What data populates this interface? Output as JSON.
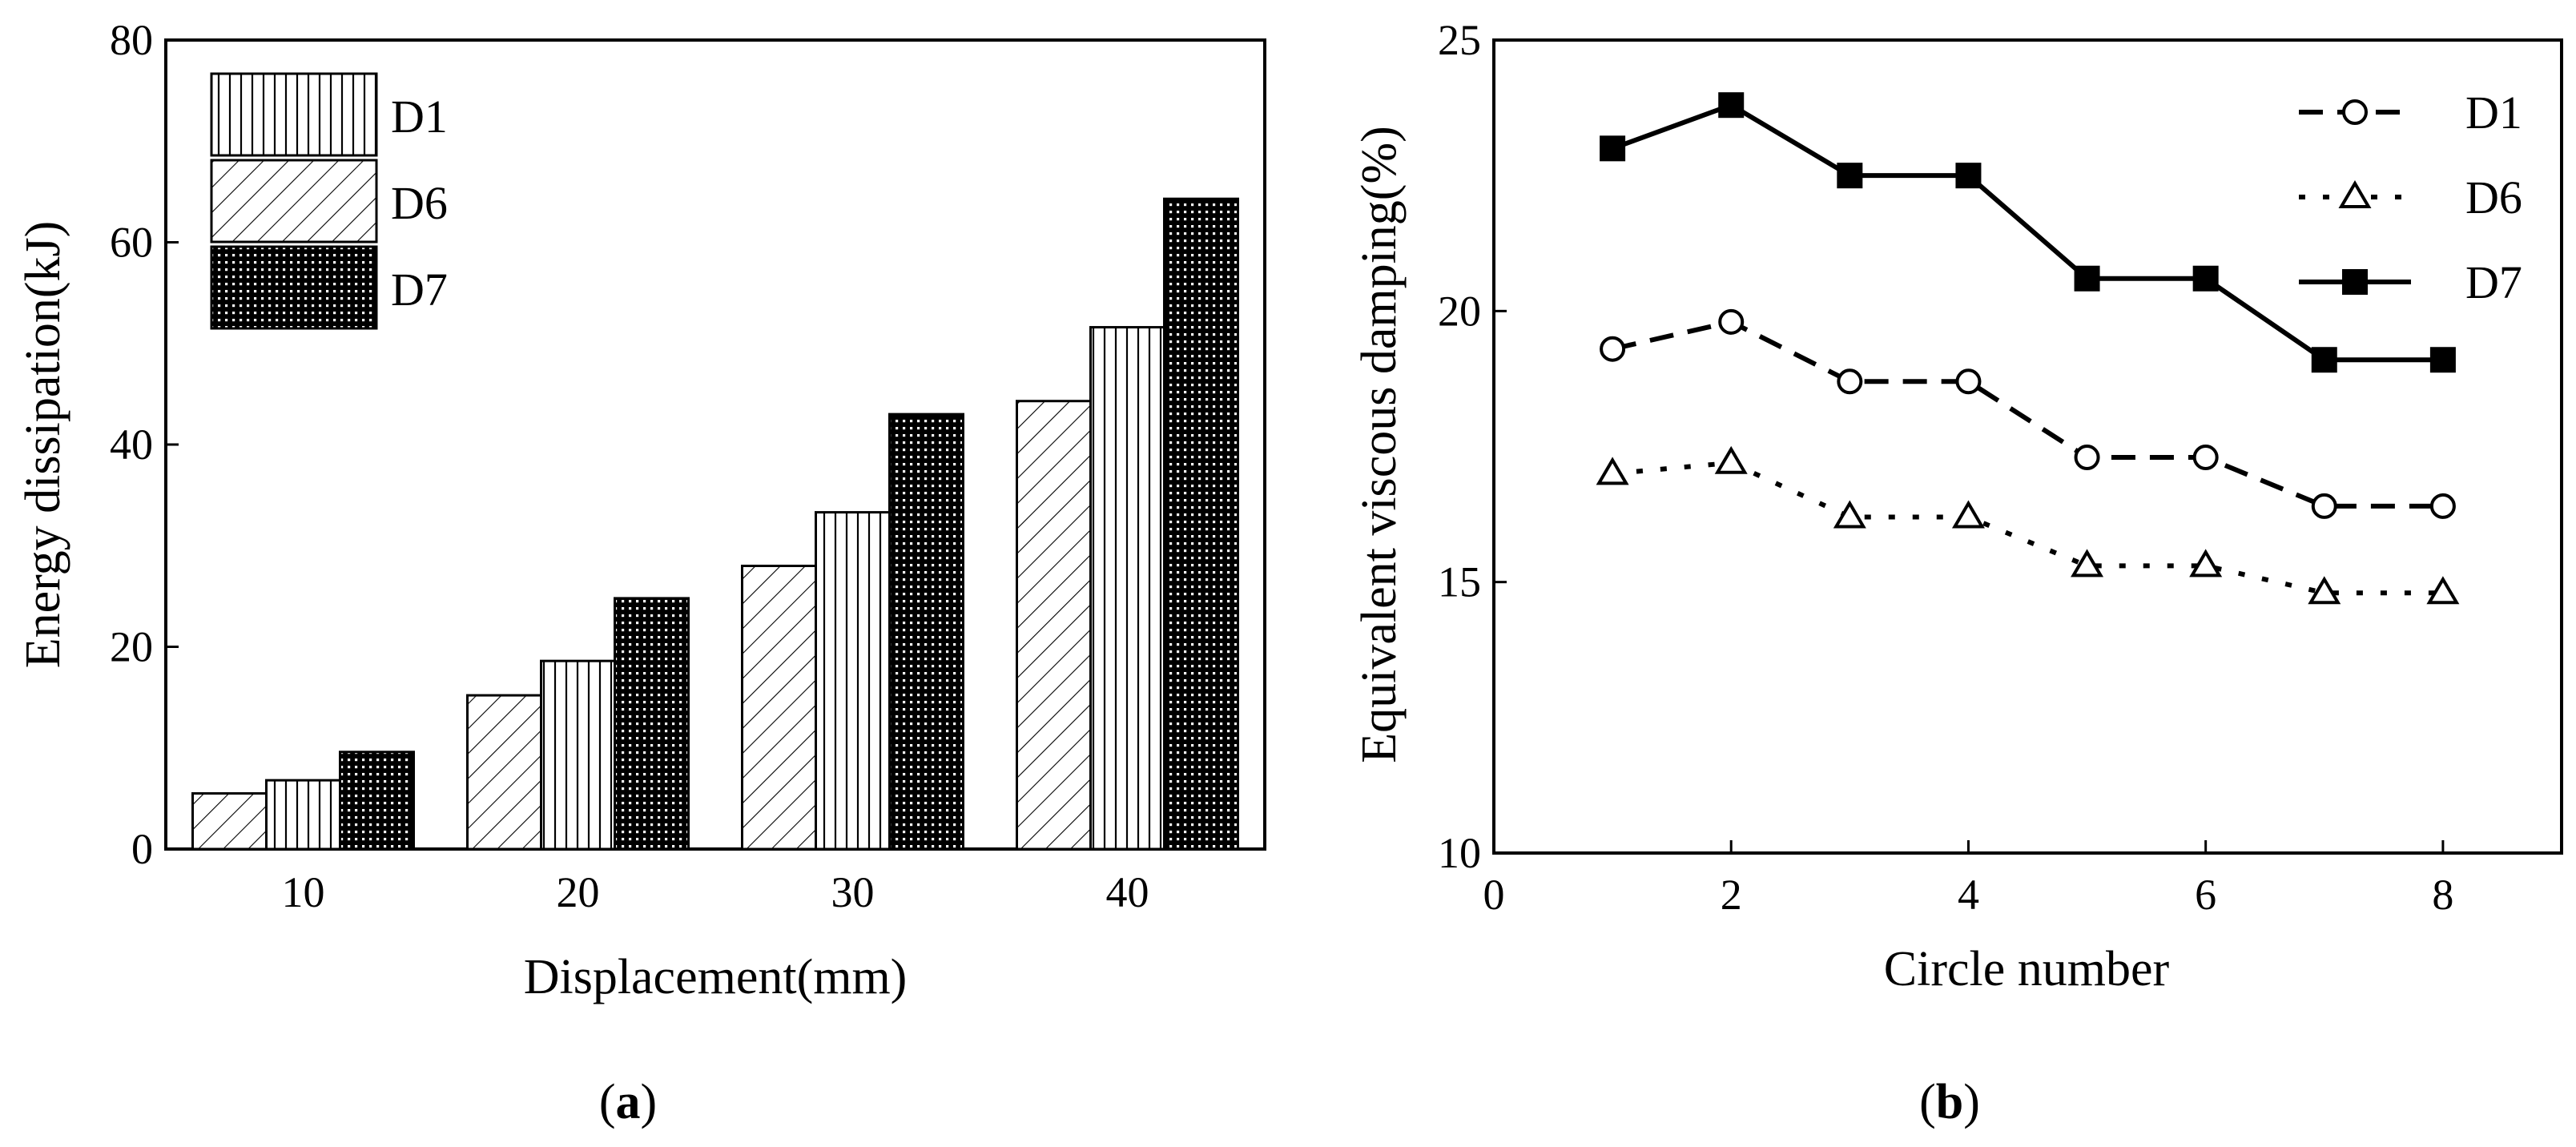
{
  "chart_data": [
    {
      "type": "bar",
      "panel_label": "a",
      "categories": [
        "10",
        "20",
        "30",
        "40"
      ],
      "series": [
        {
          "name": "D6",
          "pattern": "hatch-diagonal",
          "values": [
            5.5,
            15.2,
            28.0,
            44.3
          ]
        },
        {
          "name": "D1",
          "pattern": "hatch-vertical",
          "values": [
            6.8,
            18.6,
            33.3,
            51.6
          ]
        },
        {
          "name": "D7",
          "pattern": "dots-dense",
          "values": [
            9.6,
            24.8,
            43.0,
            64.3
          ]
        }
      ],
      "legend_order": [
        "D1",
        "D6",
        "D7"
      ],
      "legend_position": "top-left",
      "xlabel": "Displacement(mm)",
      "ylabel": "Energy dissipation(kJ)",
      "ylim": [
        0,
        80
      ],
      "yticks": [
        "0",
        "20",
        "40",
        "60",
        "80"
      ],
      "grid": false
    },
    {
      "type": "line",
      "panel_label": "b",
      "x": [
        1,
        2,
        3,
        4,
        5,
        6,
        7,
        8
      ],
      "series": [
        {
          "name": "D1",
          "style": "dashed",
          "marker": "open-circle",
          "values": [
            19.3,
            19.8,
            18.7,
            18.7,
            17.3,
            17.3,
            16.4,
            16.4
          ]
        },
        {
          "name": "D6",
          "style": "dotted",
          "marker": "open-triangle",
          "values": [
            17.0,
            17.2,
            16.2,
            16.2,
            15.3,
            15.3,
            14.8,
            14.8
          ]
        },
        {
          "name": "D7",
          "style": "solid",
          "marker": "filled-square",
          "values": [
            23.0,
            23.8,
            22.5,
            22.5,
            20.6,
            20.6,
            19.1,
            19.1
          ]
        }
      ],
      "legend_position": "top-right",
      "xlabel": "Circle number",
      "ylabel": "Equivalent viscous damping(%)",
      "xlim": [
        0,
        9
      ],
      "ylim": [
        10,
        25
      ],
      "xticks": [
        "0",
        "2",
        "4",
        "6",
        "8"
      ],
      "yticks": [
        "10",
        "15",
        "20",
        "25"
      ],
      "grid": false
    }
  ]
}
